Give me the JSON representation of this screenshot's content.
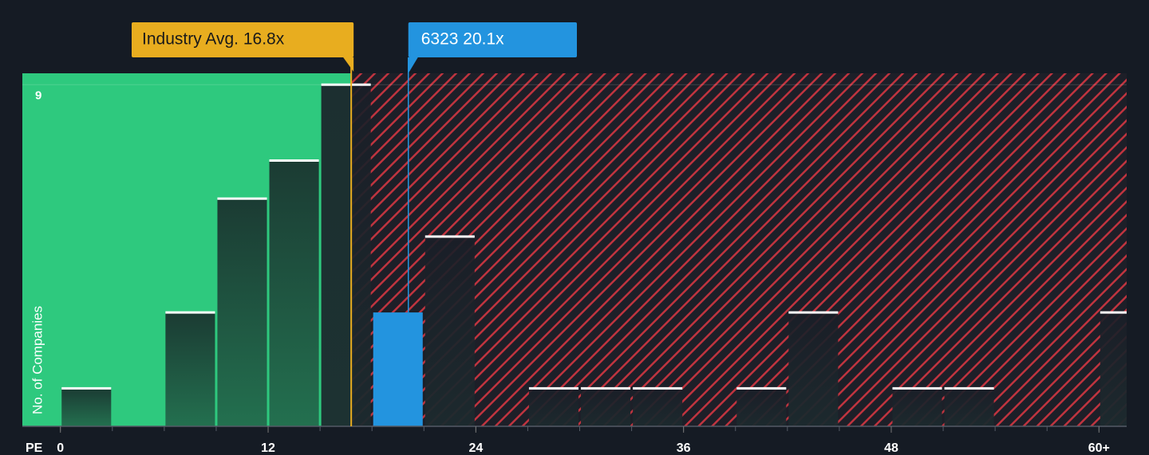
{
  "chart_data": {
    "type": "histogram",
    "x_label": "PE",
    "y_label": "No. of Companies",
    "bins": [
      0,
      3,
      6,
      9,
      12,
      15,
      18,
      21,
      24,
      27,
      30,
      33,
      36,
      39,
      42,
      45,
      48,
      51,
      54,
      57,
      60,
      63
    ],
    "values": [
      1,
      0,
      3,
      6,
      7,
      9,
      3,
      5,
      0,
      1,
      1,
      1,
      0,
      1,
      3,
      0,
      1,
      1,
      0,
      0,
      3
    ],
    "xlim": [
      -2.2,
      61.6
    ],
    "ylim": [
      0,
      9.3
    ],
    "xticks": [
      0,
      12,
      24,
      36,
      48,
      {
        "value": 60,
        "label": "60+"
      }
    ],
    "yticks": [
      9
    ],
    "industry_avg": {
      "value": 16.8,
      "label": "Industry Avg. 16.8x",
      "color": "#e8ad1f"
    },
    "company": {
      "value": 20.1,
      "label": "6323 20.1x",
      "color": "#2394df"
    },
    "colors": {
      "below": "#2ec97e",
      "above": "#c0343f",
      "bar": "#1c2a2e",
      "background": "#151b24"
    }
  }
}
